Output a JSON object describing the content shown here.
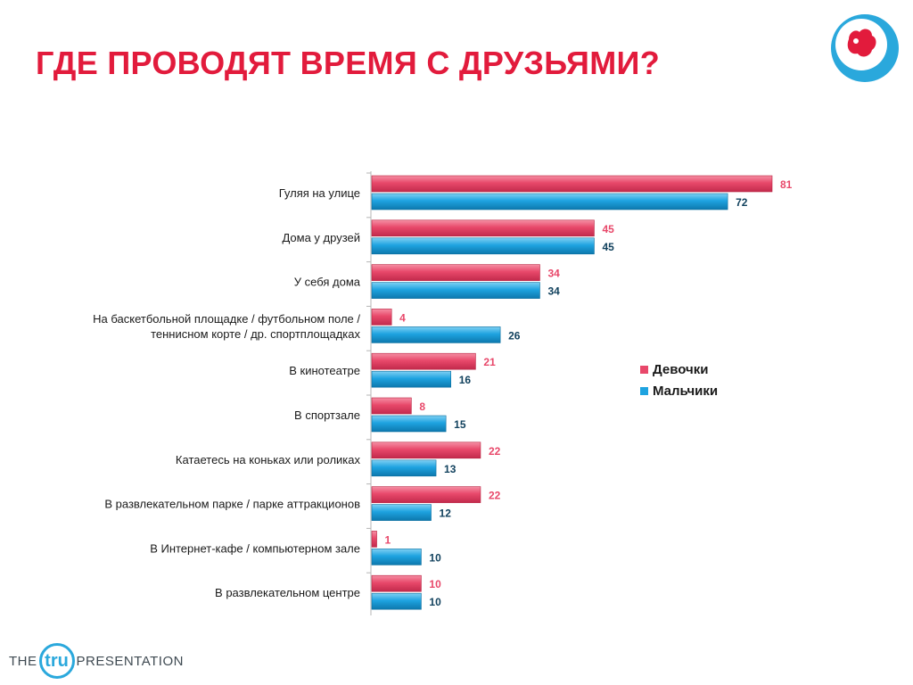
{
  "title": "ГДЕ ПРОВОДЯТ ВРЕМЯ С ДРУЗЬЯМИ?",
  "brand": {
    "footer_left": "THE",
    "footer_mid": "tru",
    "footer_right": "PRESENTATION"
  },
  "colors": {
    "girls": "#e8486a",
    "boys": "#1ea3e0",
    "girls_label": "#e8486a",
    "boys_label": "#12425e",
    "title": "#e21b3c",
    "logo": "#2aa8dc"
  },
  "chart_data": {
    "type": "bar",
    "orientation": "horizontal",
    "categories": [
      "Гуляя на улице",
      "Дома у друзей",
      "У себя дома",
      "На баскетбольной площадке / футбольном поле / теннисном корте / др. спортплощадках",
      "В кинотеатре",
      "В спортзале",
      "Катаетесь на коньках или роликах",
      "В развлекательном парке / парке аттракционов",
      "В Интернет-кафе / компьютерном зале",
      "В развлекательном центре"
    ],
    "category_lines": [
      [
        "Гуляя на улице"
      ],
      [
        "Дома у друзей"
      ],
      [
        "У себя дома"
      ],
      [
        "На баскетбольной площадке / футбольном поле /",
        "теннисном корте / др. спортплощадках"
      ],
      [
        "В кинотеатре"
      ],
      [
        "В спортзале"
      ],
      [
        "Катаетесь на коньках или роликах"
      ],
      [
        "В развлекательном парке / парке аттракционов"
      ],
      [
        "В Интернет-кафе / компьютерном зале"
      ],
      [
        "В развлекательном центре"
      ]
    ],
    "series": [
      {
        "name": "Девочки",
        "values": [
          81,
          45,
          34,
          4,
          21,
          8,
          22,
          22,
          1,
          10
        ]
      },
      {
        "name": "Мальчики",
        "values": [
          72,
          45,
          34,
          26,
          16,
          15,
          13,
          12,
          10,
          10
        ]
      }
    ],
    "xlim": [
      0,
      81
    ],
    "legend_position": "right",
    "grid": false
  }
}
